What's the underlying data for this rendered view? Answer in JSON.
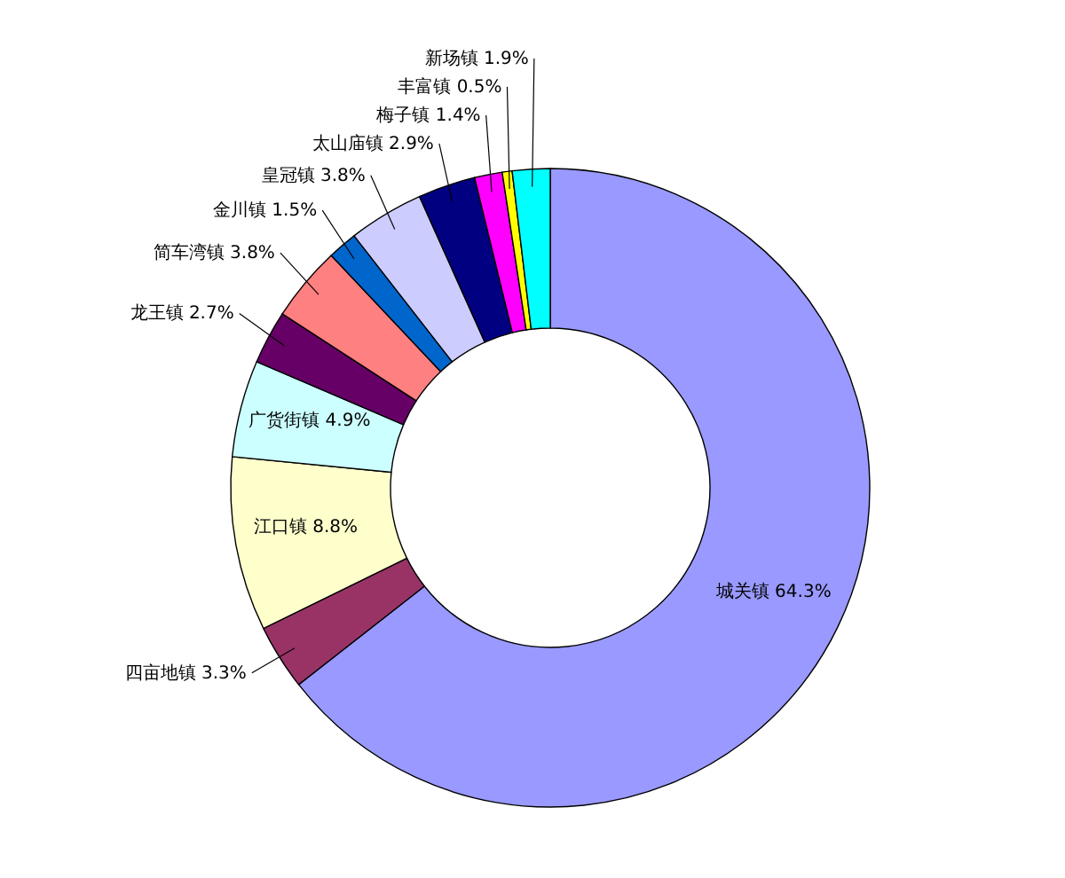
{
  "chart_data": {
    "type": "donut",
    "categories": [
      "城关镇",
      "四亩地镇",
      "江口镇",
      "广货街镇",
      "龙王镇",
      "简车湾镇",
      "金川镇",
      "皇冠镇",
      "太山庙镇",
      "梅子镇",
      "丰富镇",
      "新场镇"
    ],
    "values": [
      64.3,
      3.3,
      8.8,
      4.9,
      2.7,
      3.8,
      1.5,
      3.8,
      2.9,
      1.4,
      0.5,
      1.9
    ],
    "value_labels": [
      "64.3%",
      "3.3%",
      "8.8%",
      "4.9%",
      "2.7%",
      "3.8%",
      "1.5%",
      "3.8%",
      "2.9%",
      "1.4%",
      "0.5%",
      "1.9%"
    ],
    "colors": [
      "#9999ff",
      "#993366",
      "#ffffcc",
      "#ccffff",
      "#660066",
      "#ff8080",
      "#0066cc",
      "#ccccff",
      "#000080",
      "#ff00ff",
      "#ffff00",
      "#00ffff"
    ]
  }
}
